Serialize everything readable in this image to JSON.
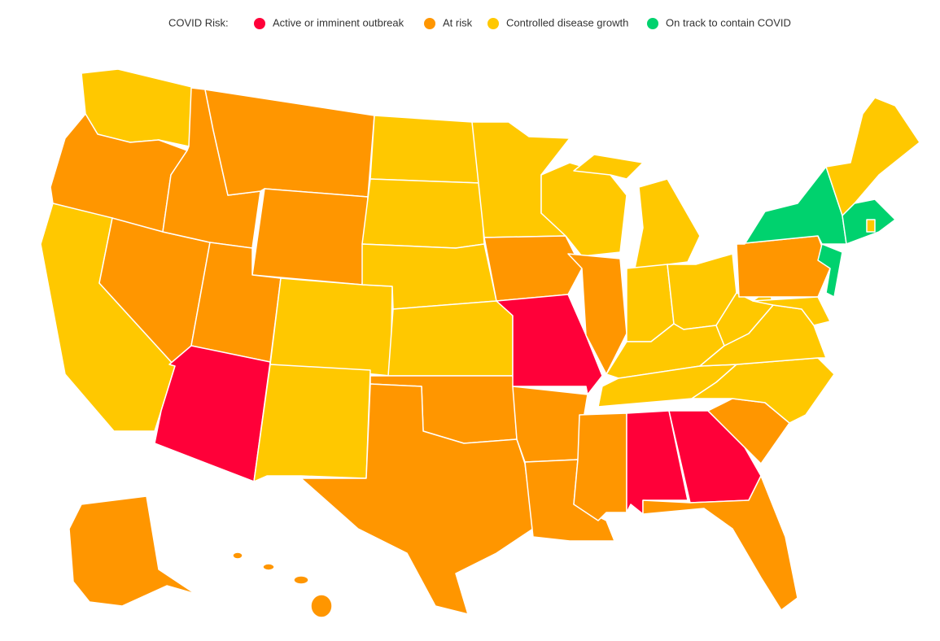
{
  "legend": {
    "title": "COVID Risk:",
    "items": [
      {
        "label": "Active or imminent outbreak",
        "color": "#ff0039"
      },
      {
        "label": "At risk",
        "color": "#ff9600"
      },
      {
        "label": "Controlled disease growth",
        "color": "#ffc800"
      },
      {
        "label": "On track to contain COVID",
        "color": "#00d26e"
      }
    ]
  }
}
